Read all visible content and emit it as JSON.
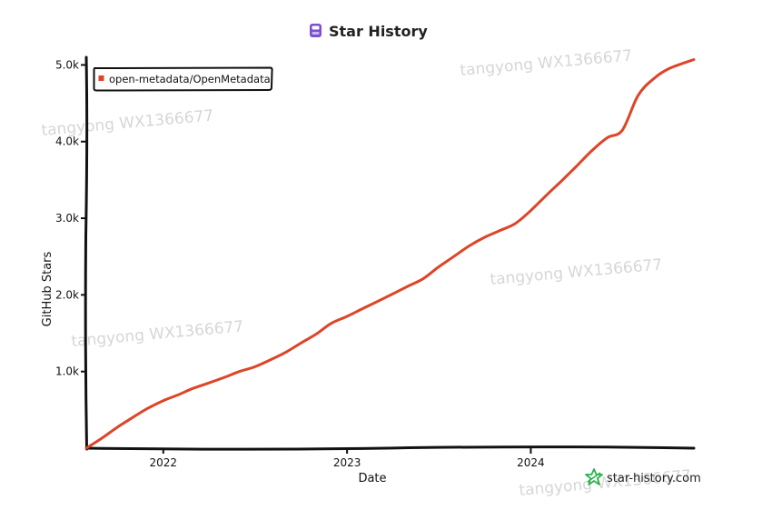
{
  "chart_data": {
    "type": "line",
    "title": "Star History",
    "xlabel": "Date",
    "ylabel": "GitHub Stars",
    "x_ticks": [
      "2022",
      "2023",
      "2024"
    ],
    "y_ticks": [
      "1.0k",
      "2.0k",
      "3.0k",
      "4.0k",
      "5.0k"
    ],
    "y_tick_values": [
      1000,
      2000,
      3000,
      4000,
      5000
    ],
    "ylim": [
      0,
      5100
    ],
    "xlim": [
      "2021-08-01",
      "2024-11-20"
    ],
    "legend_position": "top-left",
    "grid": false,
    "series": [
      {
        "name": "open-metadata/OpenMetadata",
        "color": "#dd4528",
        "points": [
          [
            "2021-08-01",
            0
          ],
          [
            "2021-09-01",
            130
          ],
          [
            "2021-10-01",
            270
          ],
          [
            "2021-11-01",
            400
          ],
          [
            "2021-12-01",
            520
          ],
          [
            "2022-01-01",
            620
          ],
          [
            "2022-02-01",
            700
          ],
          [
            "2022-03-01",
            780
          ],
          [
            "2022-04-01",
            850
          ],
          [
            "2022-05-01",
            920
          ],
          [
            "2022-06-01",
            1000
          ],
          [
            "2022-07-01",
            1060
          ],
          [
            "2022-08-01",
            1150
          ],
          [
            "2022-09-01",
            1250
          ],
          [
            "2022-10-01",
            1370
          ],
          [
            "2022-11-01",
            1490
          ],
          [
            "2022-12-01",
            1630
          ],
          [
            "2023-01-01",
            1720
          ],
          [
            "2023-02-01",
            1820
          ],
          [
            "2023-03-01",
            1910
          ],
          [
            "2023-04-01",
            2010
          ],
          [
            "2023-05-01",
            2110
          ],
          [
            "2023-06-01",
            2210
          ],
          [
            "2023-07-01",
            2360
          ],
          [
            "2023-08-01",
            2500
          ],
          [
            "2023-09-01",
            2640
          ],
          [
            "2023-10-01",
            2750
          ],
          [
            "2023-11-01",
            2840
          ],
          [
            "2023-12-01",
            2930
          ],
          [
            "2024-01-01",
            3100
          ],
          [
            "2024-02-01",
            3300
          ],
          [
            "2024-03-01",
            3480
          ],
          [
            "2024-04-01",
            3680
          ],
          [
            "2024-05-01",
            3880
          ],
          [
            "2024-06-01",
            4050
          ],
          [
            "2024-07-01",
            4150
          ],
          [
            "2024-08-01",
            4600
          ],
          [
            "2024-09-01",
            4820
          ],
          [
            "2024-10-01",
            4950
          ],
          [
            "2024-11-20",
            5070
          ]
        ]
      }
    ]
  },
  "title_icon": "repo-icon",
  "watermarks": [
    "tangyong WX1366677",
    "tangyong WX1366677",
    "tangyong WX1366677",
    "tangyong WX1366677",
    "tangyong WX1366677"
  ],
  "credit": {
    "text": "star-history.com",
    "icon": "star-history-logo-icon",
    "color": "#2bb24c"
  },
  "colors": {
    "accent": "#6f42c1",
    "line": "#dd4528",
    "axis": "#111111"
  }
}
